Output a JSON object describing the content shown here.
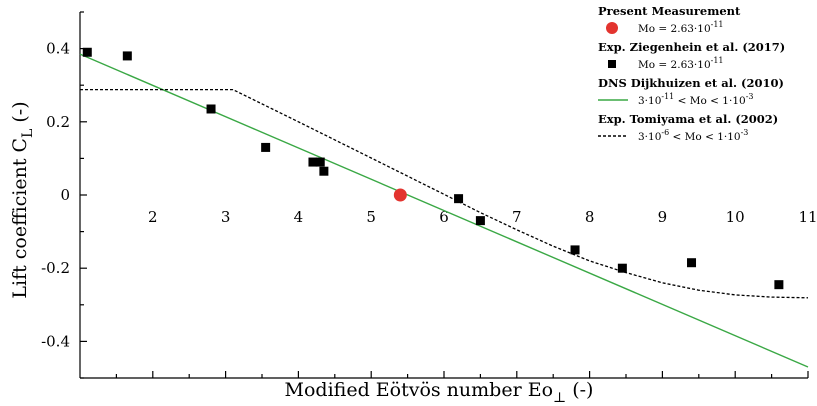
{
  "chart_data": {
    "type": "scatter",
    "xlabel": "Modified Eötvös number Eo",
    "xlabel_sub": "⊥",
    "xlabel_suffix": " (-)",
    "ylabel": "Lift coefficient C",
    "ylabel_sub": "L",
    "ylabel_suffix": " (-)",
    "xlim": [
      1.0,
      11.0
    ],
    "ylim": [
      -0.5,
      0.5
    ],
    "x_ticks": [
      2,
      3,
      4,
      5,
      6,
      7,
      8,
      9,
      10,
      11
    ],
    "y_ticks": [
      -0.4,
      -0.2,
      0,
      0.2,
      0.4
    ],
    "y_tick_labels": [
      "-0.4",
      "-0.2",
      "0",
      "0.2",
      "0.4"
    ],
    "legend_position": "top-right",
    "series": [
      {
        "name": "Present Measurement",
        "label": "Mo = 2.63·10",
        "label_sup": "-11",
        "kind": "marker-circle",
        "color": "#e3342f",
        "x": [
          5.4
        ],
        "y": [
          0.0
        ]
      },
      {
        "name": "Exp. Ziegenhein et al. (2017)",
        "label": "Mo = 2.63·10",
        "label_sup": "-11",
        "kind": "marker-square",
        "color": "#000000",
        "x": [
          1.1,
          1.65,
          2.8,
          3.55,
          4.2,
          4.3,
          4.35,
          6.2,
          6.5,
          7.8,
          8.45,
          9.4,
          10.6
        ],
        "y": [
          0.39,
          0.38,
          0.235,
          0.13,
          0.09,
          0.09,
          0.065,
          -0.01,
          -0.07,
          -0.15,
          -0.2,
          -0.185,
          -0.245
        ]
      },
      {
        "name": "DNS Dijkhuizen et al. (2010)",
        "label_pre": "3·10",
        "label_pre_sup": "-11",
        "label": " < Mo < 1·10",
        "label_sup": "-3",
        "kind": "line-solid",
        "color": "#3aa845",
        "x": [
          1.0,
          11.0
        ],
        "y": [
          0.385,
          -0.47
        ]
      },
      {
        "name": "Exp. Tomiyama et al. (2002)",
        "label_pre": "3·10",
        "label_pre_sup": "-6",
        "label": " < Mo < 1·10",
        "label_sup": "-3",
        "kind": "line-dotted",
        "color": "#000000",
        "x": [
          1.0,
          2.0,
          3.1,
          4.0,
          5.0,
          6.0,
          6.5,
          7.0,
          7.5,
          8.0,
          8.5,
          9.0,
          9.5,
          10.0,
          10.5,
          11.0
        ],
        "y": [
          0.288,
          0.288,
          0.288,
          0.2,
          0.101,
          0.002,
          -0.048,
          -0.095,
          -0.14,
          -0.18,
          -0.212,
          -0.24,
          -0.26,
          -0.273,
          -0.279,
          -0.281
        ]
      }
    ]
  }
}
